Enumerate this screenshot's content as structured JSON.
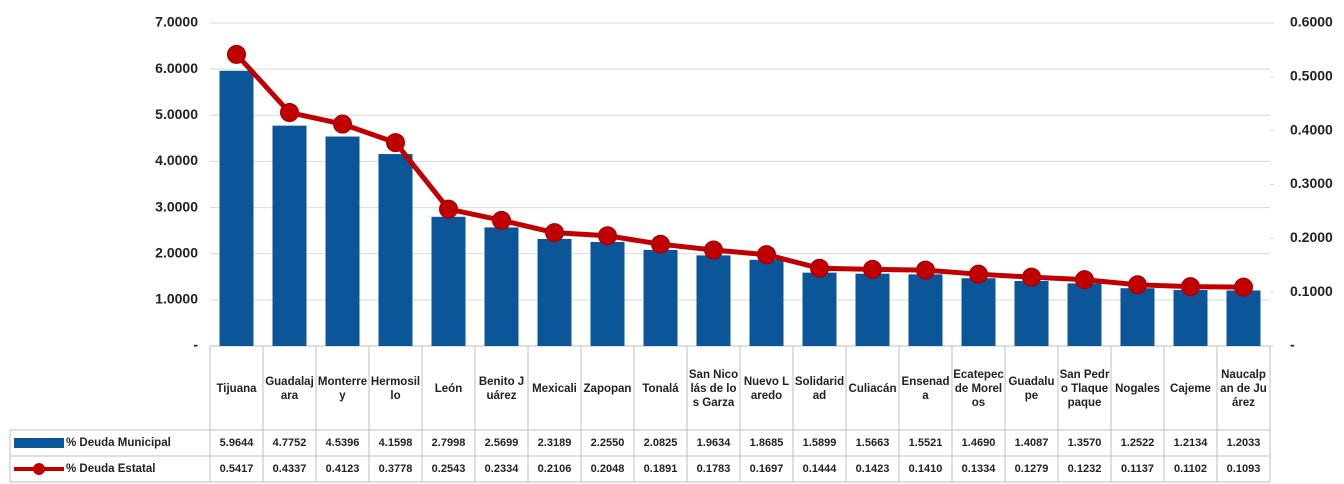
{
  "chart_data": {
    "type": "bar-line",
    "categories": [
      "Tijuana",
      "Guadalajara",
      "Monterrey",
      "Hermosillo",
      "León",
      "Benito Juárez",
      "Mexicali",
      "Zapopan",
      "Tonalá",
      "San Nicolás de los Garza",
      "Nuevo Laredo",
      "Solidaridad",
      "Culiacán",
      "Ensenada",
      "Ecatepec de Morelos",
      "Guadalupe",
      "San Pedro Tlaquepaque",
      "Nogales",
      "Cajeme",
      "Naucalpan de Juárez"
    ],
    "series": [
      {
        "name": "% Deuda Municipal",
        "color": "#0b5599",
        "type": "bar",
        "values": [
          5.9644,
          4.7752,
          4.5396,
          4.1598,
          2.7998,
          2.5699,
          2.3189,
          2.255,
          2.0825,
          1.9634,
          1.8685,
          1.5899,
          1.5663,
          1.5521,
          1.469,
          1.4087,
          1.357,
          1.2522,
          1.2134,
          1.2033
        ],
        "value_labels": [
          "5.9644",
          "4.7752",
          "4.5396",
          "4.1598",
          "2.7998",
          "2.5699",
          "2.3189",
          "2.2550",
          "2.0825",
          "1.9634",
          "1.8685",
          "1.5899",
          "1.5663",
          "1.5521",
          "1.4690",
          "1.4087",
          "1.3570",
          "1.2522",
          "1.2134",
          "1.2033"
        ]
      },
      {
        "name": "% Deuda Estatal",
        "color": "#c00000",
        "type": "line",
        "axis": "y2",
        "values": [
          0.5417,
          0.4337,
          0.4123,
          0.3778,
          0.2543,
          0.2334,
          0.2106,
          0.2048,
          0.1891,
          0.1783,
          0.1697,
          0.1444,
          0.1423,
          0.141,
          0.1334,
          0.1279,
          0.1232,
          0.1137,
          0.1102,
          0.1093
        ],
        "value_labels": [
          "0.5417",
          "0.4337",
          "0.4123",
          "0.3778",
          "0.2543",
          "0.2334",
          "0.2106",
          "0.2048",
          "0.1891",
          "0.1783",
          "0.1697",
          "0.1444",
          "0.1423",
          "0.1410",
          "0.1334",
          "0.1279",
          "0.1232",
          "0.1137",
          "0.1102",
          "0.1093"
        ]
      }
    ],
    "ylim": [
      0,
      7
    ],
    "yticks": [
      {
        "value": 0,
        "label": "-"
      },
      {
        "value": 1,
        "label": "1.0000"
      },
      {
        "value": 2,
        "label": "2.0000"
      },
      {
        "value": 3,
        "label": "3.0000"
      },
      {
        "value": 4,
        "label": "4.0000"
      },
      {
        "value": 5,
        "label": "5.0000"
      },
      {
        "value": 6,
        "label": "6.0000"
      },
      {
        "value": 7,
        "label": "7.0000"
      }
    ],
    "y2lim": [
      0,
      0.6
    ],
    "y2ticks": [
      {
        "value": 0,
        "label": "-"
      },
      {
        "value": 0.1,
        "label": "0.1000"
      },
      {
        "value": 0.2,
        "label": "0.2000"
      },
      {
        "value": 0.3,
        "label": "0.3000"
      },
      {
        "value": 0.4,
        "label": "0.4000"
      },
      {
        "value": 0.5,
        "label": "0.5000"
      },
      {
        "value": 0.6,
        "label": "0.6000"
      }
    ],
    "grid": true
  }
}
